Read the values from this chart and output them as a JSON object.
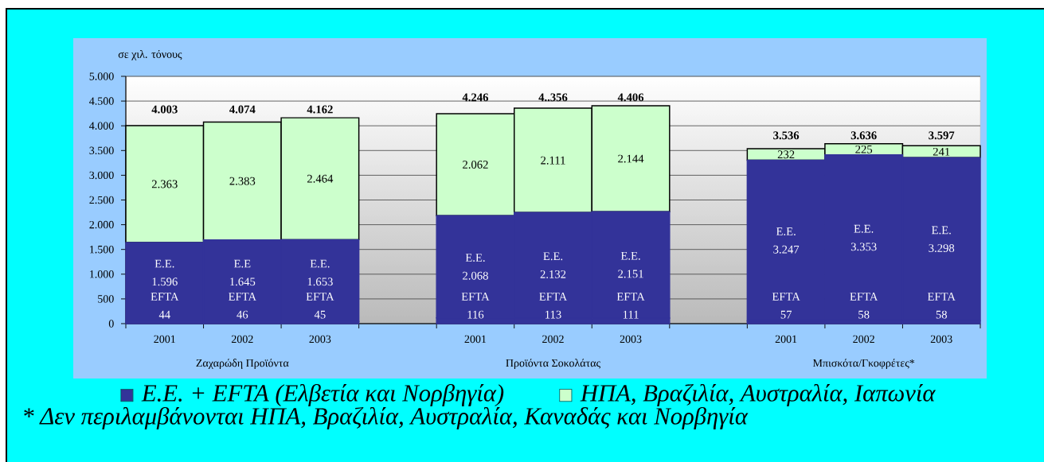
{
  "chart_data": {
    "type": "bar",
    "stacked": true,
    "ylabel": "σε χιλ. τόνους",
    "categories": [
      "2001",
      "2002",
      "2003",
      null,
      "2001",
      "2002",
      "2003",
      null,
      "2001",
      "2002",
      "2003"
    ],
    "series": [
      {
        "color": "#333399",
        "values": [
          44,
          46,
          45,
          null,
          116,
          113,
          111,
          null,
          57,
          58,
          58
        ],
        "value_labels": [
          "EFTA 44",
          "EFTA 46",
          "EFTA 45",
          null,
          "EFTA 116",
          "EFTA 113",
          "EFTA 111",
          null,
          "EFTA 57",
          "EFTA 58",
          "EFTA 58"
        ]
      },
      {
        "name": "Ε.Ε. + EFTA (Ελβετία και Νορβηγία)",
        "color": "#333399",
        "values": [
          1596,
          1645,
          1653,
          null,
          2068,
          2132,
          2151,
          null,
          3247,
          3353,
          3298
        ],
        "value_labels": [
          "Ε.Ε. 1.596",
          "Ε.Ε 1.645",
          "Ε.Ε. 1.653",
          null,
          "Ε.Ε. 2.068",
          "Ε.Ε. 2.132",
          "Ε.Ε. 2.151",
          null,
          "Ε.Ε. 3.247",
          "Ε.Ε. 3.353",
          "Ε.Ε. 3.298"
        ]
      },
      {
        "name": "ΗΠΑ, Βραζιλία, Αυστραλία, Ιαπωνία",
        "color": "#ccffcc",
        "values": [
          2363,
          2383,
          2464,
          null,
          2062,
          2111,
          2144,
          null,
          232,
          225,
          241
        ],
        "value_labels": [
          "2.363",
          "2.383",
          "2.464",
          null,
          "2.062",
          "2.111",
          "2.144",
          null,
          "232",
          "225",
          "241"
        ]
      }
    ],
    "totals": [
      "4.003",
      "4.074",
      "4.162",
      null,
      "4.246",
      "4..356",
      "4.406",
      null,
      "3.536",
      "3.636",
      "3.597"
    ],
    "ylim": [
      0,
      5000
    ],
    "yticks": [
      0,
      500,
      {
        "value": 1000,
        "label": "1.000"
      },
      {
        "value": 1500,
        "label": "1.500"
      },
      {
        "value": 2000,
        "label": "2.000"
      },
      {
        "value": 2500,
        "label": "2.500"
      },
      {
        "value": 3000,
        "label": "3.000"
      },
      {
        "value": 3500,
        "label": "3.500"
      },
      {
        "value": 4000,
        "label": "4.000"
      },
      {
        "value": 4500,
        "label": "4.500"
      },
      {
        "value": 5000,
        "label": "5.000"
      }
    ],
    "grid": "y",
    "legend": "bottom",
    "annotations": [
      "Ζαχαρώδη Προϊόντα",
      "Προϊόντα Σοκολάτας",
      "Μπισκότα/Γκοφρέτες*",
      "* Δεν περιλαμβάνονται ΗΠΑ, Βραζιλία, Αυστραλία, Καναδάς και Νορβηγία"
    ]
  }
}
